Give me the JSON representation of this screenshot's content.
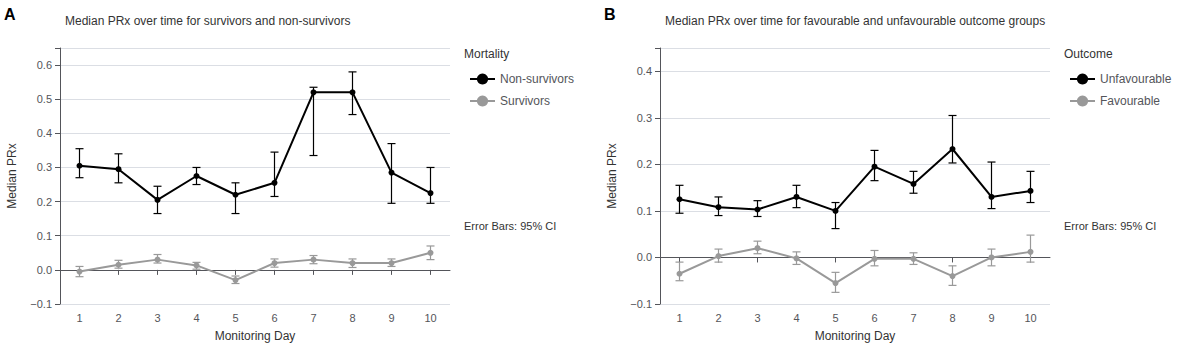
{
  "chart_data": [
    {
      "type": "line",
      "panel_label": "A",
      "title": "Median PRx over time for survivors and non-survivors",
      "xlabel": "Monitoring Day",
      "ylabel": "Median PRx",
      "legend_title": "Mortality",
      "note": "Error Bars: 95% CI",
      "x": [
        1,
        2,
        3,
        4,
        5,
        6,
        7,
        8,
        9,
        10
      ],
      "xlim": [
        0.5,
        10.5
      ],
      "xticks": [
        1,
        2,
        3,
        4,
        5,
        6,
        7,
        8,
        9,
        10
      ],
      "ylim": [
        -0.1,
        0.65
      ],
      "yticks": [
        {
          "value": -0.1,
          "label": "−0.1"
        },
        {
          "value": 0.0,
          "label": "0.0"
        },
        0.1,
        0.2,
        0.3,
        0.4,
        0.5,
        0.6
      ],
      "grid": true,
      "legend": "right",
      "marker": "circle",
      "series": [
        {
          "name": "Non-survivors",
          "color": "#000000",
          "values": [
            0.305,
            0.295,
            0.205,
            0.275,
            0.22,
            0.255,
            0.52,
            0.52,
            0.285,
            0.225
          ],
          "yerr_lo": [
            0.035,
            0.04,
            0.04,
            0.025,
            0.055,
            0.04,
            0.185,
            0.065,
            0.09,
            0.03
          ],
          "yerr_hi": [
            0.05,
            0.045,
            0.04,
            0.025,
            0.035,
            0.09,
            0.015,
            0.06,
            0.085,
            0.075
          ]
        },
        {
          "name": "Survivors",
          "color": "#999999",
          "values": [
            -0.005,
            0.015,
            0.03,
            0.013,
            -0.03,
            0.02,
            0.03,
            0.02,
            0.02,
            0.05
          ],
          "yerr_lo": [
            0.015,
            0.01,
            0.01,
            0.011,
            0.01,
            0.012,
            0.012,
            0.013,
            0.01,
            0.02
          ],
          "yerr_hi": [
            0.015,
            0.013,
            0.015,
            0.009,
            0.012,
            0.012,
            0.012,
            0.012,
            0.012,
            0.02
          ]
        }
      ]
    },
    {
      "type": "line",
      "panel_label": "B",
      "title": "Median PRx over time for favourable and unfavourable outcome groups",
      "xlabel": "Monitoring Day",
      "ylabel": "Median PRx",
      "legend_title": "Outcome",
      "note": "Error Bars: 95% CI",
      "x": [
        1,
        2,
        3,
        4,
        5,
        6,
        7,
        8,
        9,
        10
      ],
      "xlim": [
        0.5,
        10.5
      ],
      "xticks": [
        1,
        2,
        3,
        4,
        5,
        6,
        7,
        8,
        9,
        10
      ],
      "ylim": [
        -0.1,
        0.45
      ],
      "yticks": [
        {
          "value": -0.1,
          "label": "−0.1"
        },
        {
          "value": 0.0,
          "label": "0.0"
        },
        0.1,
        0.2,
        0.3,
        0.4
      ],
      "grid": true,
      "legend": "right",
      "marker": "circle",
      "series": [
        {
          "name": "Unfavourable",
          "color": "#000000",
          "values": [
            0.125,
            0.108,
            0.103,
            0.13,
            0.1,
            0.195,
            0.158,
            0.233,
            0.13,
            0.143
          ],
          "yerr_lo": [
            0.03,
            0.018,
            0.015,
            0.023,
            0.038,
            0.03,
            0.02,
            0.03,
            0.025,
            0.025
          ],
          "yerr_hi": [
            0.03,
            0.022,
            0.019,
            0.025,
            0.018,
            0.035,
            0.027,
            0.072,
            0.075,
            0.042
          ]
        },
        {
          "name": "Favourable",
          "color": "#999999",
          "values": [
            -0.035,
            0.003,
            0.02,
            -0.002,
            -0.055,
            -0.003,
            -0.003,
            -0.04,
            0.0,
            0.012
          ],
          "yerr_lo": [
            0.015,
            0.013,
            0.012,
            0.013,
            0.02,
            0.015,
            0.012,
            0.02,
            0.018,
            0.022
          ],
          "yerr_hi": [
            0.025,
            0.015,
            0.015,
            0.014,
            0.023,
            0.018,
            0.013,
            0.022,
            0.018,
            0.036
          ]
        }
      ]
    }
  ]
}
